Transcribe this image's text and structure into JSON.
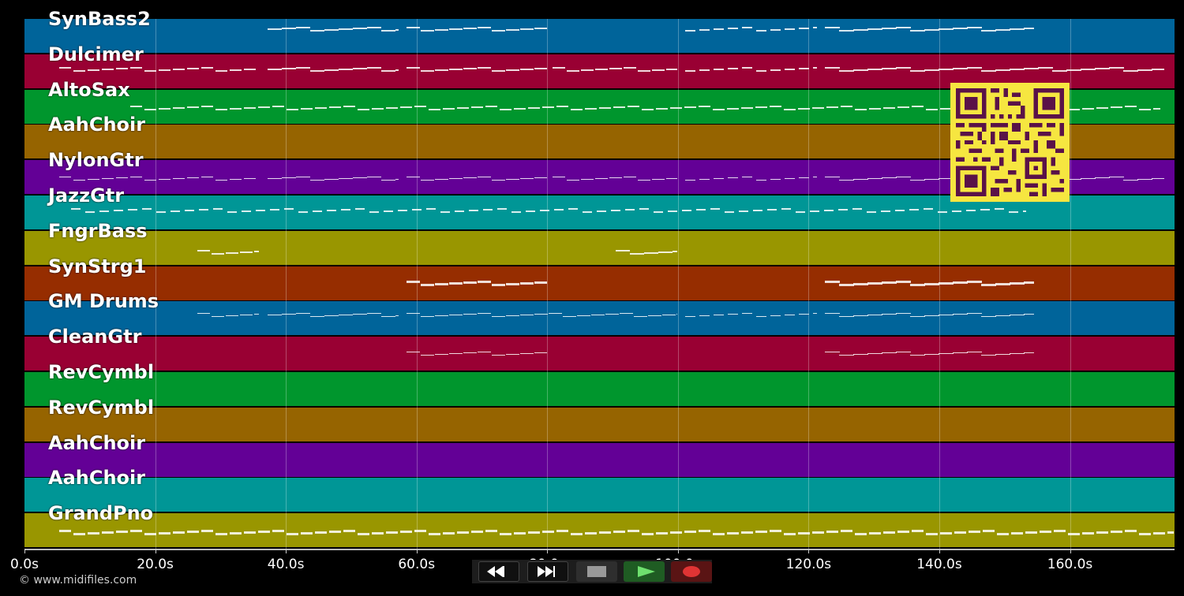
{
  "tracks": [
    {
      "name": "SynBass2",
      "color": "#00649a"
    },
    {
      "name": "Dulcimer",
      "color": "#990033"
    },
    {
      "name": "AltoSax",
      "color": "#00962d"
    },
    {
      "name": "AahChoir",
      "color": "#966400"
    },
    {
      "name": "NylonGtr",
      "color": "#630096"
    },
    {
      "name": "JazzGtr",
      "color": "#009696"
    },
    {
      "name": "FngrBass",
      "color": "#999600"
    },
    {
      "name": "SynStrg1",
      "color": "#962d00"
    },
    {
      "name": "GM Drums",
      "color": "#00649a"
    },
    {
      "name": "CleanGtr",
      "color": "#990033"
    },
    {
      "name": "RevCymbl",
      "color": "#00962d"
    },
    {
      "name": "RevCymbl",
      "color": "#966400"
    },
    {
      "name": "AahChoir",
      "color": "#630096"
    },
    {
      "name": "AahChoir",
      "color": "#009696"
    },
    {
      "name": "GrandPno",
      "color": "#999600"
    }
  ],
  "timeline": {
    "max_seconds": 176,
    "ticks": [
      "0.0s",
      "20.0s",
      "40.0s",
      "60.0s",
      "80.0s",
      "100.0s",
      "120.0s",
      "140.0s",
      "160.0s"
    ]
  },
  "footer": {
    "copyright": "© www.midifiles.com"
  },
  "transport": {
    "rewind": "rewind-icon",
    "fast_forward": "fast-forward-icon",
    "stop": "stop-icon",
    "play": "play-icon",
    "record": "record-icon"
  },
  "overlay": {
    "qr": "qr-code"
  }
}
